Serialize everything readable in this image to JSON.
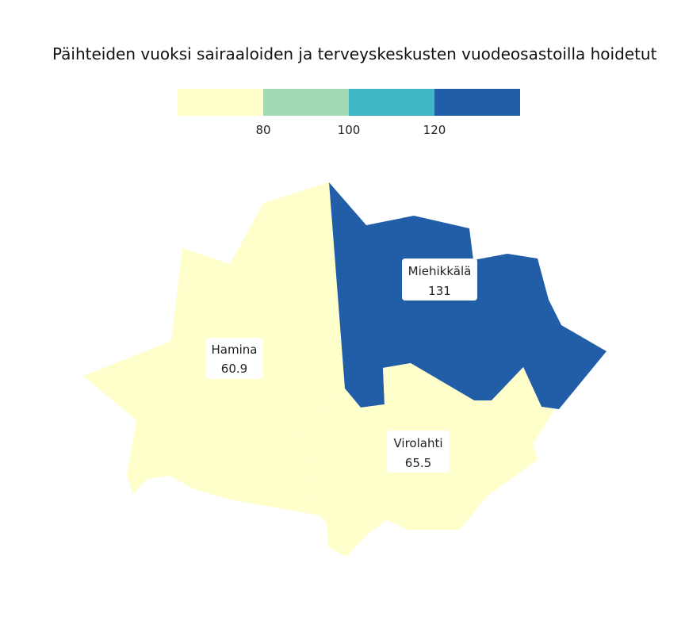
{
  "title": "Päihteiden vuoksi sairaaloiden ja terveyskeskusten vuodeosastoilla hoidetut",
  "legend": {
    "colors": [
      "#ffffcc",
      "#a1dab4",
      "#41b6c4",
      "#225ea8"
    ],
    "breaks": [
      "80",
      "100",
      "120"
    ]
  },
  "regions": [
    {
      "name": "Hamina",
      "value": "60.9",
      "color": "#ffffcc"
    },
    {
      "name": "Miehikkälä",
      "value": "131",
      "color": "#225ea8"
    },
    {
      "name": "Virolahti",
      "value": "65.5",
      "color": "#ffffcc"
    }
  ]
}
